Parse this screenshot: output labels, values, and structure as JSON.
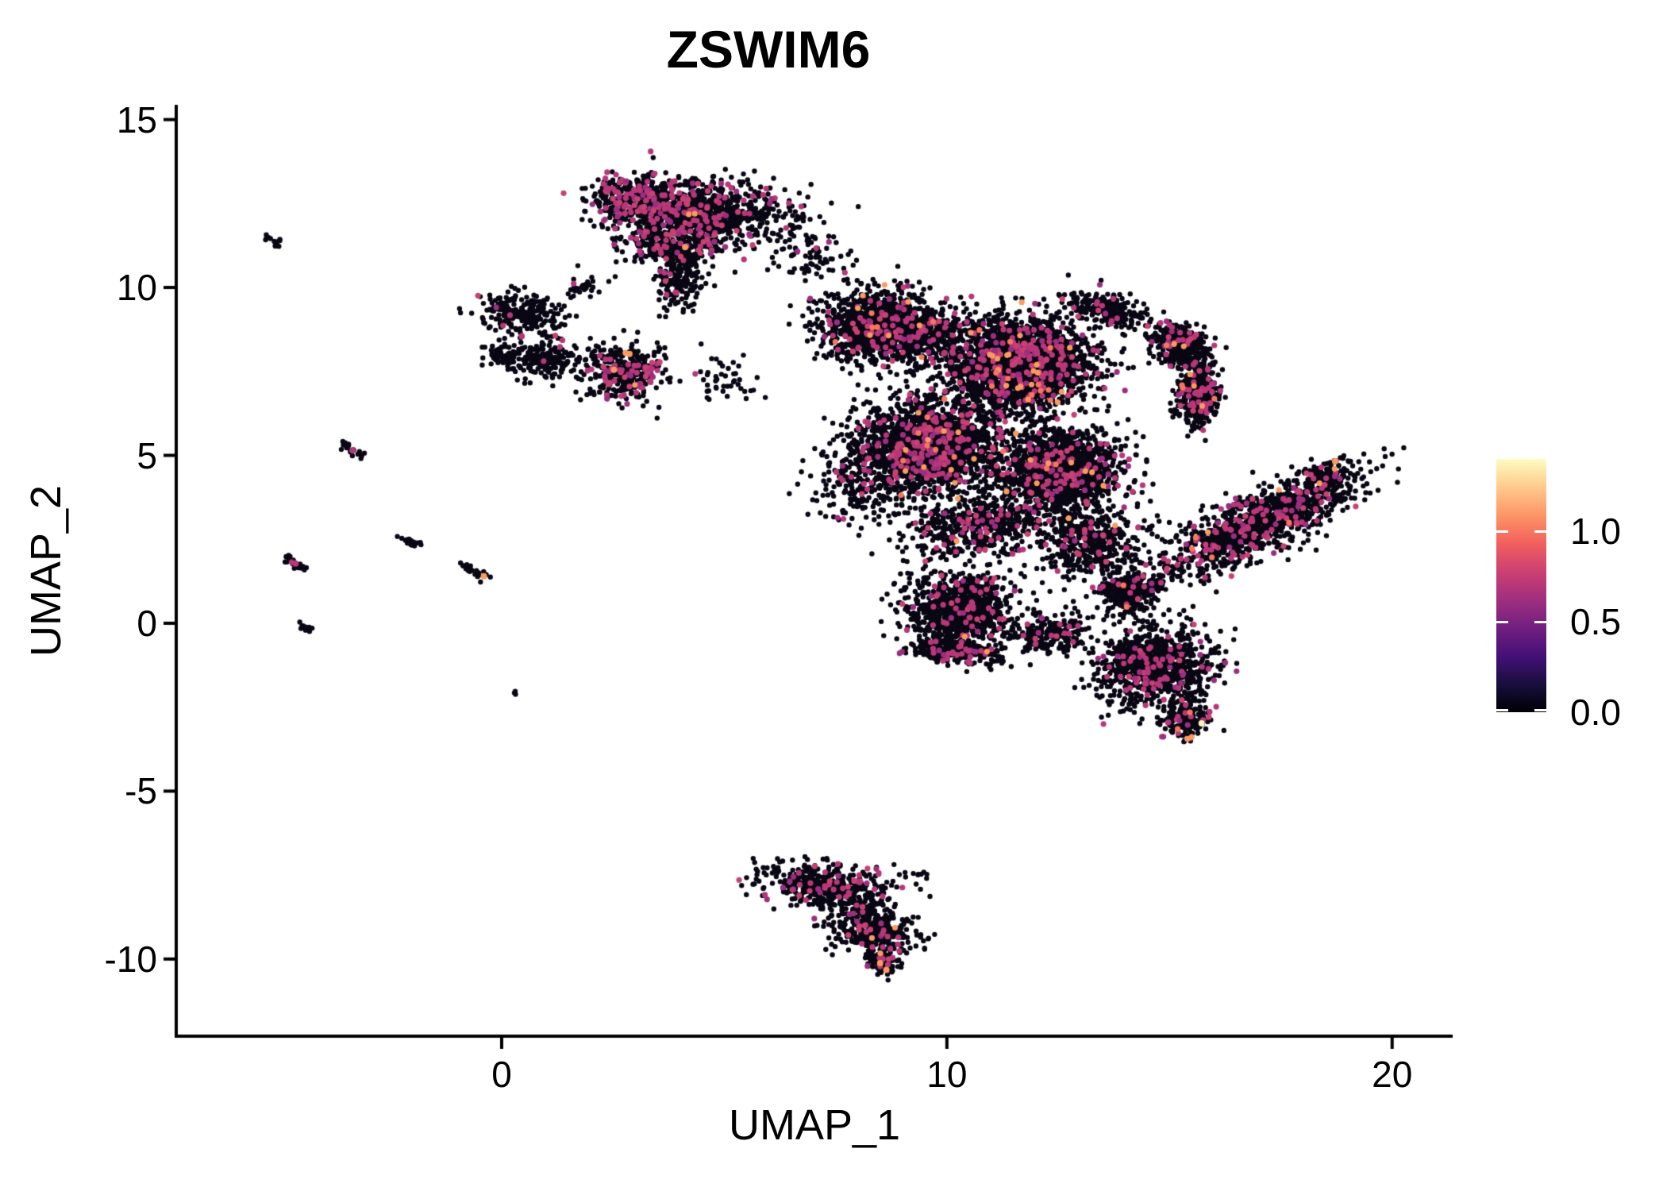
{
  "title": "ZSWIM6",
  "x_axis": {
    "label": "UMAP_1",
    "tick_labels": [
      "0",
      "10",
      "20"
    ],
    "tick_values": [
      0,
      10,
      20
    ]
  },
  "y_axis": {
    "label": "UMAP_2",
    "tick_labels": [
      "15",
      "10",
      "5",
      "0",
      "-5",
      "-10"
    ],
    "tick_values": [
      15,
      10,
      5,
      0,
      -5,
      -10
    ]
  },
  "legend": {
    "tick_labels": [
      "1.0",
      "0.5",
      "0.0"
    ],
    "tick_values": [
      1.0,
      0.5,
      0.0
    ],
    "vmin": 0.0,
    "vmax": 1.4,
    "gradient_stops_bottom_to_top": [
      "#000004",
      "#180f3e",
      "#451077",
      "#721f81",
      "#9f2f7f",
      "#cd4071",
      "#f1605d",
      "#fd9567",
      "#feca8d",
      "#fcfdbf"
    ]
  },
  "colors": {
    "background": "#ffffff",
    "text": "#000000",
    "axis": "#000000",
    "point_low": "#0a0714",
    "point_mid": [
      "#b73779",
      "#9c2e7f",
      "#c84173"
    ],
    "point_high": [
      "#fb9b5f",
      "#f8765c"
    ],
    "point_top": "#fcf4b6"
  },
  "chart_data": {
    "type": "scatter",
    "title": "ZSWIM6",
    "xlabel": "UMAP_1",
    "ylabel": "UMAP_2",
    "xlim": [
      -7.31,
      21.36
    ],
    "ylim": [
      -12.25,
      15.44
    ],
    "x_ticks": [
      0,
      10,
      20
    ],
    "y_ticks": [
      15,
      10,
      5,
      0,
      -5,
      -10
    ],
    "grid": false,
    "legend_position": "right",
    "color_scale": {
      "name": "magma",
      "domain": [
        0.0,
        1.4
      ],
      "legend_ticks": [
        1.0,
        0.5,
        0.0
      ]
    },
    "point_radius_px": 3.2,
    "accent_radius_px": 4.0,
    "seed": 42,
    "clusters": [
      {
        "name": "top-left",
        "type": "gauss",
        "cx": 3.1,
        "cy": 12.55,
        "rx": 1.1,
        "ry": 0.78,
        "rot": -8,
        "n": 520,
        "mid": 0.22,
        "high": 0.004
      },
      {
        "name": "top-right",
        "type": "gauss",
        "cx": 4.55,
        "cy": 12.25,
        "rx": 1.3,
        "ry": 0.88,
        "rot": 6,
        "n": 620,
        "mid": 0.1,
        "high": 0.004
      },
      {
        "name": "top-lower",
        "type": "gauss",
        "cx": 3.9,
        "cy": 11.3,
        "rx": 1.25,
        "ry": 0.6,
        "rot": 0,
        "n": 330,
        "mid": 0.12,
        "high": 0.002
      },
      {
        "name": "top-tail",
        "type": "gauss",
        "cx": 4.0,
        "cy": 10.25,
        "rx": 0.55,
        "ry": 0.85,
        "rot": 0,
        "n": 180,
        "mid": 0.06,
        "high": 0
      },
      {
        "name": "top-spray",
        "type": "gauss",
        "cx": 6.1,
        "cy": 11.9,
        "rx": 1.05,
        "ry": 1.05,
        "rot": 0,
        "n": 130,
        "mid": 0.08,
        "high": 0
      },
      {
        "name": "top-bridge",
        "type": "gauss",
        "cx": 7.1,
        "cy": 10.9,
        "rx": 0.85,
        "ry": 0.85,
        "rot": 0,
        "n": 60,
        "mid": 0.05,
        "high": 0
      },
      {
        "name": "left-blob-upper",
        "type": "gauss",
        "cx": 0.45,
        "cy": 9.2,
        "rx": 0.88,
        "ry": 0.62,
        "rot": -10,
        "n": 240,
        "mid": 0.012,
        "high": 0
      },
      {
        "name": "left-blob-lower",
        "type": "gauss",
        "cx": 0.95,
        "cy": 7.85,
        "rx": 0.82,
        "ry": 0.66,
        "rot": 15,
        "n": 200,
        "mid": 0.02,
        "high": 0
      },
      {
        "name": "left-blob-edge",
        "type": "gauss",
        "cx": 0.05,
        "cy": 7.95,
        "rx": 0.4,
        "ry": 0.4,
        "rot": 0,
        "n": 60,
        "mid": 0,
        "high": 0
      },
      {
        "name": "pink-blob",
        "type": "gauss",
        "cx": 2.75,
        "cy": 7.5,
        "rx": 0.88,
        "ry": 0.82,
        "rot": -20,
        "n": 380,
        "mid": 0.13,
        "high": 0.004
      },
      {
        "name": "spray-a",
        "type": "gauss",
        "cx": 1.9,
        "cy": 10.1,
        "rx": 0.5,
        "ry": 0.38,
        "rot": 0,
        "n": 30,
        "mid": 0.03,
        "high": 0
      },
      {
        "name": "spray-b",
        "type": "gauss",
        "cx": 5.0,
        "cy": 7.3,
        "rx": 0.75,
        "ry": 0.75,
        "rot": 0,
        "n": 45,
        "mid": 0.04,
        "high": 0
      },
      {
        "name": "main-topleft",
        "type": "gauss",
        "cx": 8.7,
        "cy": 8.8,
        "rx": 1.5,
        "ry": 1.05,
        "rot": -10,
        "n": 1500,
        "mid": 0.07,
        "high": 0.008
      },
      {
        "name": "main-core",
        "type": "gauss",
        "cx": 11.6,
        "cy": 7.7,
        "rx": 1.55,
        "ry": 1.35,
        "rot": 0,
        "n": 2400,
        "mid": 0.09,
        "high": 0.012
      },
      {
        "name": "main-left",
        "type": "gauss",
        "cx": 9.6,
        "cy": 5.3,
        "rx": 1.5,
        "ry": 1.3,
        "rot": 0,
        "n": 1900,
        "mid": 0.09,
        "high": 0.008
      },
      {
        "name": "main-lowmid",
        "type": "gauss",
        "cx": 12.5,
        "cy": 4.6,
        "rx": 1.4,
        "ry": 1.2,
        "rot": 0,
        "n": 1500,
        "mid": 0.08,
        "high": 0.008
      },
      {
        "name": "hook-top",
        "type": "gauss",
        "cx": 13.6,
        "cy": 9.35,
        "rx": 0.8,
        "ry": 0.45,
        "rot": -15,
        "n": 260,
        "mid": 0.06,
        "high": 0.004
      },
      {
        "name": "hook-upper",
        "type": "gauss",
        "cx": 15.25,
        "cy": 8.3,
        "rx": 0.8,
        "ry": 0.55,
        "rot": -50,
        "n": 420,
        "mid": 0.07,
        "high": 0.004
      },
      {
        "name": "hook-lower",
        "type": "gauss",
        "cx": 15.65,
        "cy": 6.8,
        "rx": 0.45,
        "ry": 0.9,
        "rot": -5,
        "n": 420,
        "mid": 0.08,
        "high": 0.004
      },
      {
        "name": "main-leftspray",
        "type": "gauss",
        "cx": 8.2,
        "cy": 4.4,
        "rx": 1.35,
        "ry": 1.35,
        "rot": 0,
        "n": 300,
        "mid": 0.07,
        "high": 0.003
      },
      {
        "name": "main-lowbridge",
        "type": "gauss",
        "cx": 10.7,
        "cy": 2.9,
        "rx": 1.6,
        "ry": 0.95,
        "rot": 10,
        "n": 550,
        "mid": 0.07,
        "high": 0.004
      },
      {
        "name": "main-lowright",
        "type": "gauss",
        "cx": 13.2,
        "cy": 2.4,
        "rx": 1.05,
        "ry": 1.05,
        "rot": 0,
        "n": 450,
        "mid": 0.07,
        "high": 0.004
      },
      {
        "name": "lobe-left",
        "type": "gauss",
        "cx": 10.3,
        "cy": 0.4,
        "rx": 1.18,
        "ry": 1.1,
        "rot": 0,
        "n": 900,
        "mid": 0.08,
        "high": 0.004
      },
      {
        "name": "lobe-left-edge",
        "type": "gauss",
        "cx": 10.2,
        "cy": -0.85,
        "rx": 1.0,
        "ry": 0.32,
        "rot": -5,
        "n": 260,
        "mid": 0.12,
        "high": 0.004
      },
      {
        "name": "lobe-bridge",
        "type": "gauss",
        "cx": 12.3,
        "cy": -0.3,
        "rx": 0.95,
        "ry": 0.6,
        "rot": 10,
        "n": 220,
        "mid": 0.06,
        "high": 0
      },
      {
        "name": "neck",
        "type": "gauss",
        "cx": 14.0,
        "cy": 0.9,
        "rx": 0.6,
        "ry": 0.75,
        "rot": 0,
        "n": 250,
        "mid": 0.06,
        "high": 0.004
      },
      {
        "name": "lobe-right",
        "type": "gauss",
        "cx": 14.7,
        "cy": -1.3,
        "rx": 1.3,
        "ry": 1.15,
        "rot": 15,
        "n": 950,
        "mid": 0.08,
        "high": 0.006
      },
      {
        "name": "lobe-right-tail",
        "type": "gauss",
        "cx": 15.35,
        "cy": -2.9,
        "rx": 0.5,
        "ry": 0.55,
        "rot": 0,
        "n": 180,
        "mid": 0.1,
        "high": 0.01
      },
      {
        "name": "arm",
        "type": "gauss",
        "cx": 17.0,
        "cy": 3.0,
        "rx": 2.45,
        "ry": 0.8,
        "rot": 33,
        "n": 1250,
        "mid": 0.1,
        "high": 0.004
      },
      {
        "name": "arm-tipleft",
        "type": "gauss",
        "cx": 14.55,
        "cy": 1.05,
        "rx": 0.42,
        "ry": 0.3,
        "rot": 33,
        "n": 70,
        "mid": 0.05,
        "high": 0
      },
      {
        "name": "arm-topedge",
        "type": "gauss",
        "cx": 18.55,
        "cy": 4.4,
        "rx": 0.7,
        "ry": 0.38,
        "rot": 25,
        "n": 90,
        "mid": 0.08,
        "high": 0.01
      },
      {
        "name": "bottom-top",
        "type": "gauss",
        "cx": 7.3,
        "cy": -7.8,
        "rx": 1.5,
        "ry": 0.62,
        "rot": -8,
        "n": 430,
        "mid": 0.09,
        "high": 0.002
      },
      {
        "name": "bottom-mid",
        "type": "gauss",
        "cx": 8.3,
        "cy": -9.0,
        "rx": 1.1,
        "ry": 0.78,
        "rot": -25,
        "n": 380,
        "mid": 0.08,
        "high": 0.004
      },
      {
        "name": "bottom-tip",
        "type": "gauss",
        "cx": 8.55,
        "cy": -10.05,
        "rx": 0.38,
        "ry": 0.42,
        "rot": 0,
        "n": 90,
        "mid": 0.1,
        "high": 0.02
      },
      {
        "name": "bottom-stray",
        "type": "gauss",
        "cx": 9.4,
        "cy": -7.5,
        "rx": 0.3,
        "ry": 0.22,
        "rot": 0,
        "n": 8,
        "mid": 0,
        "high": 0
      },
      {
        "name": "streak-1",
        "type": "streak",
        "x1": -5.35,
        "y1": 11.5,
        "x2": -4.95,
        "y2": 11.2,
        "jit": 0.06,
        "n": 14,
        "mid": 0,
        "high": 0
      },
      {
        "name": "streak-2",
        "type": "streak",
        "x1": -3.6,
        "y1": 5.35,
        "x2": -3.1,
        "y2": 4.95,
        "jit": 0.06,
        "n": 20,
        "mid": 0.05,
        "high": 0
      },
      {
        "name": "streak-3",
        "type": "streak",
        "x1": -2.35,
        "y1": 2.62,
        "x2": -1.92,
        "y2": 2.3,
        "jit": 0.06,
        "n": 18,
        "mid": 0,
        "high": 0
      },
      {
        "name": "streak-4",
        "type": "streak",
        "x1": -4.85,
        "y1": 1.95,
        "x2": -4.38,
        "y2": 1.55,
        "jit": 0.06,
        "n": 24,
        "mid": 0.04,
        "high": 0
      },
      {
        "name": "streak-5",
        "type": "streak",
        "x1": -0.95,
        "y1": 1.75,
        "x2": -0.38,
        "y2": 1.38,
        "jit": 0.06,
        "n": 24,
        "mid": 0,
        "high": 0
      },
      {
        "name": "streak-6",
        "type": "streak",
        "x1": -4.55,
        "y1": -0.02,
        "x2": -4.28,
        "y2": -0.25,
        "jit": 0.05,
        "n": 12,
        "mid": 0,
        "high": 0
      },
      {
        "name": "dot-pair",
        "type": "streak",
        "x1": 0.25,
        "y1": -2.02,
        "x2": 0.32,
        "y2": -2.1,
        "jit": 0.03,
        "n": 3,
        "mid": 0,
        "high": 0
      }
    ],
    "accents": [
      {
        "x": -0.4,
        "y": 1.4,
        "level": "high"
      },
      {
        "x": -4.63,
        "y": 1.78,
        "level": "mid"
      },
      {
        "x": -3.35,
        "y": 5.15,
        "level": "mid"
      },
      {
        "x": 8.5,
        "y": -10.12,
        "level": "high"
      },
      {
        "x": 8.64,
        "y": -10.32,
        "level": "high"
      },
      {
        "x": 15.72,
        "y": -2.98,
        "level": "top"
      },
      {
        "x": 18.72,
        "y": 4.82,
        "level": "high"
      },
      {
        "x": 4.12,
        "y": 11.2,
        "level": "high"
      },
      {
        "x": 2.87,
        "y": 8.02,
        "level": "high"
      },
      {
        "x": 2.52,
        "y": 7.55,
        "level": "high"
      },
      {
        "x": 0.45,
        "y": 8.55,
        "level": "mid"
      }
    ]
  }
}
